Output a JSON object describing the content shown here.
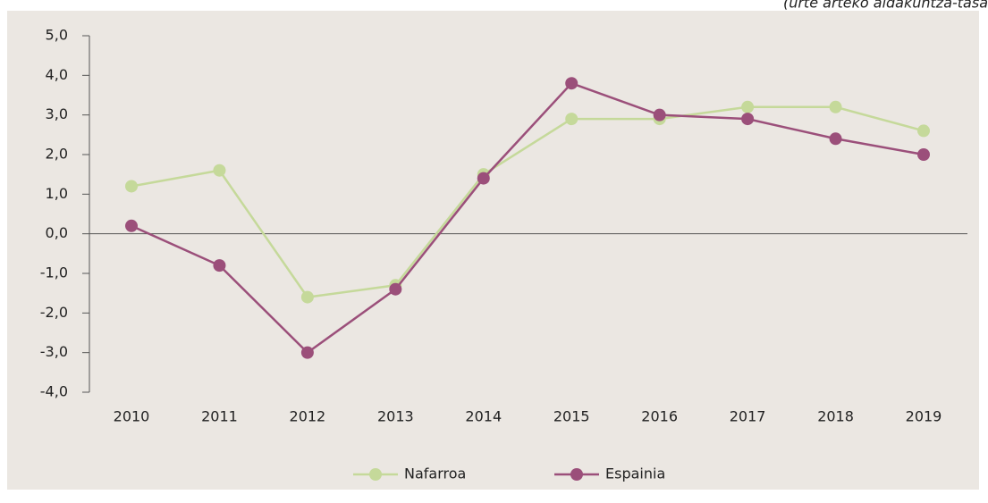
{
  "chart_data": {
    "type": "line",
    "subtitle": "(urte arteko aldakuntza-tasa",
    "categories": [
      "2010",
      "2011",
      "2012",
      "2013",
      "2014",
      "2015",
      "2016",
      "2017",
      "2018",
      "2019"
    ],
    "series": [
      {
        "name": "Nafarroa",
        "color": "#c5d99a",
        "values": [
          1.2,
          1.6,
          -1.6,
          -1.3,
          1.5,
          2.9,
          2.9,
          3.2,
          3.2,
          2.6
        ]
      },
      {
        "name": "Espainia",
        "color": "#9b4f7a",
        "values": [
          0.2,
          -0.8,
          -3.0,
          -1.4,
          1.4,
          3.8,
          3.0,
          2.9,
          2.4,
          2.0
        ]
      }
    ],
    "ylim": [
      -4,
      5
    ],
    "yticks": [
      {
        "value": 5,
        "label": "5,0"
      },
      {
        "value": 4,
        "label": "4,0"
      },
      {
        "value": 3,
        "label": "3,0"
      },
      {
        "value": 2,
        "label": "2,0"
      },
      {
        "value": 1,
        "label": "1,0"
      },
      {
        "value": 0,
        "label": "0,0"
      },
      {
        "value": -1,
        "label": "-1,0"
      },
      {
        "value": -2,
        "label": "-2,0"
      },
      {
        "value": -3,
        "label": "-3,0"
      },
      {
        "value": -4,
        "label": "-4,0"
      }
    ],
    "legend": "bottom"
  }
}
